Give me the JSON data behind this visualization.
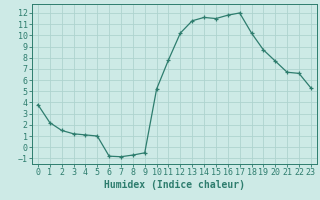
{
  "xlabel": "Humidex (Indice chaleur)",
  "ylabel": "",
  "x_values": [
    0,
    1,
    2,
    3,
    4,
    5,
    6,
    7,
    8,
    9,
    10,
    11,
    12,
    13,
    14,
    15,
    16,
    17,
    18,
    19,
    20,
    21,
    22,
    23
  ],
  "y_values": [
    3.8,
    2.2,
    1.5,
    1.2,
    1.1,
    1.0,
    -0.8,
    -0.85,
    -0.7,
    -0.5,
    5.2,
    7.8,
    10.2,
    11.3,
    11.6,
    11.5,
    11.8,
    12.0,
    10.2,
    8.7,
    7.7,
    6.7,
    6.6,
    5.3
  ],
  "line_color": "#2e7d6e",
  "marker": "+",
  "bg_color": "#cdeae6",
  "grid_color": "#aed4cf",
  "ylim": [
    -1.5,
    12.8
  ],
  "xlim": [
    -0.5,
    23.5
  ],
  "yticks": [
    -1,
    0,
    1,
    2,
    3,
    4,
    5,
    6,
    7,
    8,
    9,
    10,
    11,
    12
  ],
  "xticks": [
    0,
    1,
    2,
    3,
    4,
    5,
    6,
    7,
    8,
    9,
    10,
    11,
    12,
    13,
    14,
    15,
    16,
    17,
    18,
    19,
    20,
    21,
    22,
    23
  ],
  "tick_color": "#2e7d6e",
  "label_color": "#2e7d6e",
  "spine_color": "#2e7d6e",
  "xlabel_fontsize": 7,
  "tick_fontsize": 6
}
